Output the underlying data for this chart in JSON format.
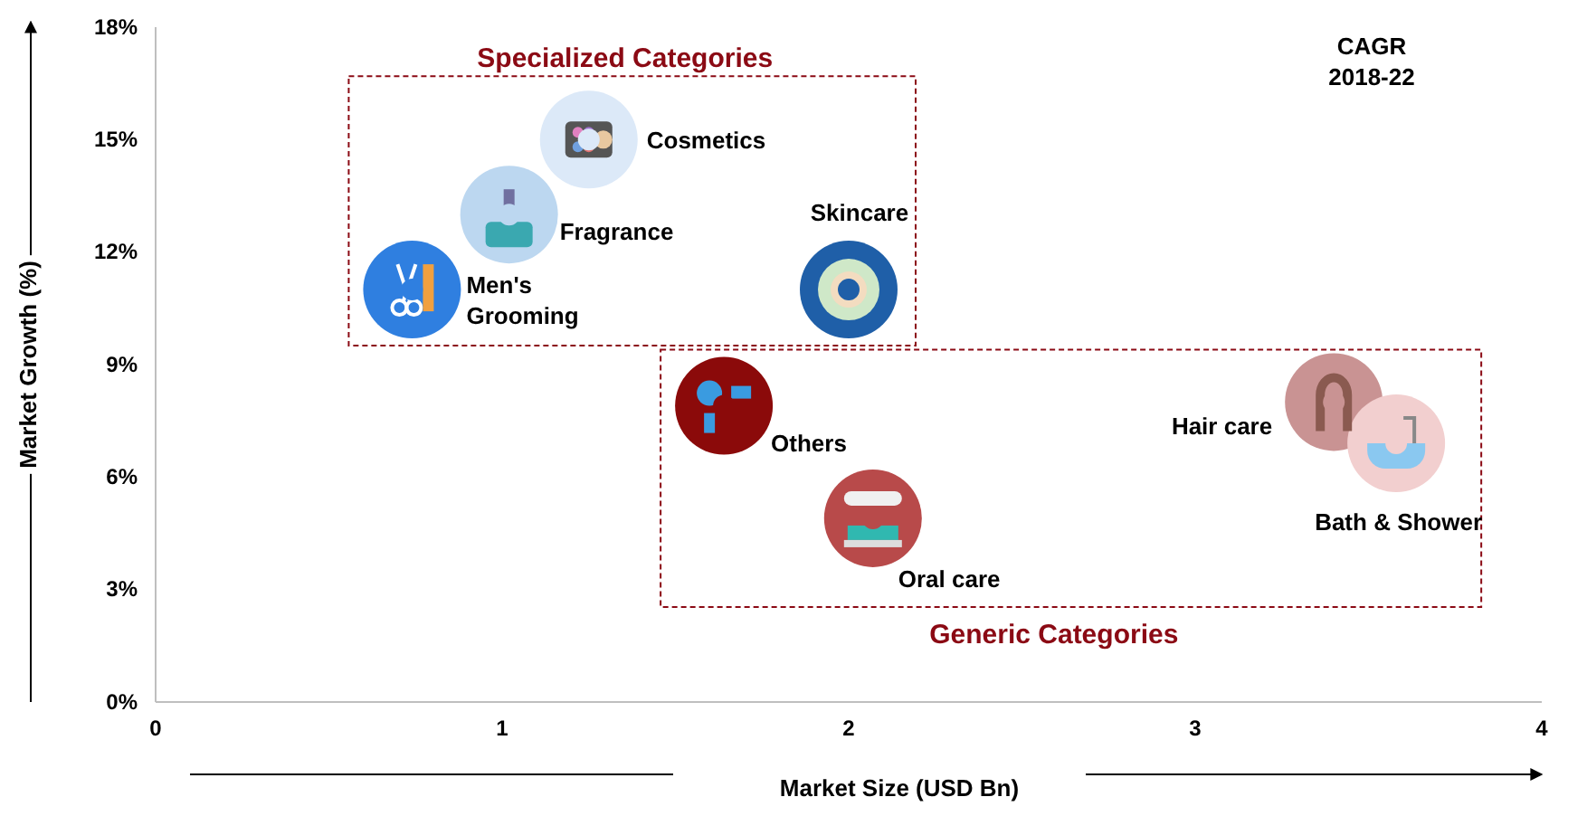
{
  "chart_data": {
    "type": "scatter",
    "xlabel": "Market Size (USD Bn)",
    "ylabel": "Market Growth (%)",
    "xlim": [
      0,
      4
    ],
    "xticks": [
      0,
      1,
      2,
      3,
      4
    ],
    "ylim": [
      0,
      18
    ],
    "yticks": [
      {
        "value": 0,
        "label": "0%"
      },
      {
        "value": 3,
        "label": "3%"
      },
      {
        "value": 6,
        "label": "6%"
      },
      {
        "value": 9,
        "label": "9%"
      },
      {
        "value": 12,
        "label": "12%"
      },
      {
        "value": 15,
        "label": "15%"
      },
      {
        "value": 18,
        "label": "18%"
      }
    ],
    "grid": false,
    "marker": "circle",
    "series": [
      {
        "color": "#8b0a14",
        "x": [
          1.25,
          1.02,
          0.74,
          2.0
        ],
        "values": [
          15.0,
          13.0,
          11.0,
          11.0
        ],
        "colors": [
          "#dce9f8",
          "#bcd7f0",
          "#2f7fe0",
          "#1f5fa8"
        ]
      },
      {
        "color": "#8b0a14",
        "x": [
          1.64,
          2.07,
          3.4,
          3.58
        ],
        "values": [
          7.9,
          4.9,
          8.0,
          6.9
        ],
        "colors": [
          "#8b0a0a",
          "#b84a4a",
          "#c99393",
          "#f2cfcf"
        ]
      }
    ],
    "annotations": [
      {
        "text": "Cosmetics",
        "x": 1.25,
        "y": 15.0
      },
      {
        "text": "Fragrance",
        "x": 1.02,
        "y": 13.0
      },
      {
        "text": "Men's Grooming",
        "x": 0.74,
        "y": 11.0
      },
      {
        "text": "Skincare",
        "x": 2.0,
        "y": 11.0
      },
      {
        "text": "Others",
        "x": 1.64,
        "y": 7.9
      },
      {
        "text": "Oral care",
        "x": 2.07,
        "y": 4.9
      },
      {
        "text": "Hair care",
        "x": 3.4,
        "y": 8.0
      },
      {
        "text": "Bath & Shower",
        "x": 3.58,
        "y": 6.9
      },
      "CAGR 2018-22",
      "Specialized Categories",
      "Generic Categories"
    ]
  }
}
